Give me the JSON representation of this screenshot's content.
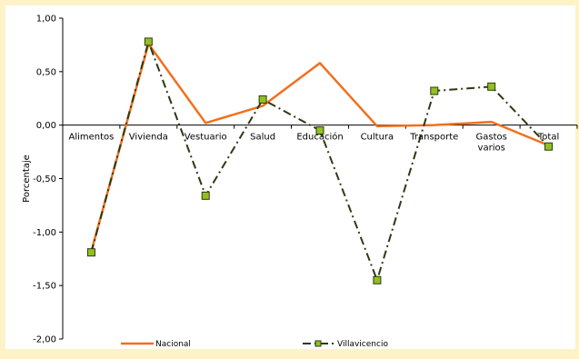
{
  "chart_data": {
    "type": "line",
    "categories": [
      "Alimentos",
      "Vivienda",
      "Vestuario",
      "Salud",
      "Educación",
      "Cultura",
      "Transporte",
      "Gastos varios",
      "Total"
    ],
    "category_lines": [
      [
        "Alimentos"
      ],
      [
        "Vivienda"
      ],
      [
        "Vestuario"
      ],
      [
        "Salud"
      ],
      [
        "Educación"
      ],
      [
        "Cultura"
      ],
      [
        "Transporte"
      ],
      [
        "Gastos",
        "varios"
      ],
      [
        "Total"
      ]
    ],
    "series": [
      {
        "name": "Nacional",
        "color": "#f26f1e",
        "style": "solid",
        "marker": "none",
        "values": [
          -1.18,
          0.76,
          0.02,
          0.18,
          0.58,
          -0.01,
          0.0,
          0.03,
          -0.19
        ]
      },
      {
        "name": "Villavicencio",
        "color": "#2b3a12",
        "marker_color": "#93bf1f",
        "style": "dash-dot",
        "marker": "square",
        "values": [
          -1.19,
          0.78,
          -0.66,
          0.24,
          -0.05,
          -1.45,
          0.32,
          0.36,
          -0.2
        ]
      }
    ],
    "ylabel": "Porcentaje",
    "ylim": [
      -2.0,
      1.0
    ],
    "yticks": [
      1.0,
      0.5,
      0.0,
      -0.5,
      -1.0,
      -1.5,
      -2.0
    ],
    "ytick_labels": [
      "1,00",
      "0,50",
      "0,00",
      "-0,50",
      "-1,00",
      "-1,50",
      "-2,00"
    ],
    "grid": false,
    "legend": "bottom"
  }
}
